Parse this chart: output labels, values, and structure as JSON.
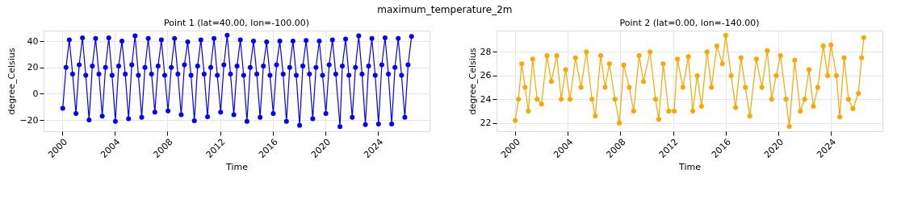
{
  "chart_data": [
    {
      "type": "line",
      "title": "Point 1 (lat=40.00, lon=-100.00)",
      "xlabel": "Time",
      "ylabel": "degree_Celsius",
      "annotations": [
        "maximum_temperature_2m"
      ],
      "grid": true,
      "marker": "circle",
      "line_style": "solid",
      "xlim": [
        "1998-08",
        "2027-12"
      ],
      "xticks": [
        "2000",
        "2004",
        "2008",
        "2012",
        "2016",
        "2020",
        "2024"
      ],
      "ylim": [
        -28.5,
        48
      ],
      "yticks": [
        -20,
        0,
        20,
        40
      ],
      "series": [
        {
          "color": "#0000ff",
          "x": [
            "2000-01-15",
            "2000-04-15",
            "2000-07-15",
            "2000-10-15",
            "2001-01-15",
            "2001-04-15",
            "2001-07-15",
            "2001-10-15",
            "2002-01-15",
            "2002-04-15",
            "2002-07-15",
            "2002-10-15",
            "2003-01-15",
            "2003-04-15",
            "2003-07-15",
            "2003-10-15",
            "2004-01-15",
            "2004-04-15",
            "2004-07-15",
            "2004-10-15",
            "2005-01-15",
            "2005-04-15",
            "2005-07-15",
            "2005-10-15",
            "2006-01-15",
            "2006-04-15",
            "2006-07-15",
            "2006-10-15",
            "2007-01-15",
            "2007-04-15",
            "2007-07-15",
            "2007-10-15",
            "2008-01-15",
            "2008-04-15",
            "2008-07-15",
            "2008-10-15",
            "2009-01-15",
            "2009-04-15",
            "2009-07-15",
            "2009-10-15",
            "2010-01-15",
            "2010-04-15",
            "2010-07-15",
            "2010-10-15",
            "2011-01-15",
            "2011-04-15",
            "2011-07-15",
            "2011-10-15",
            "2012-01-15",
            "2012-04-15",
            "2012-07-15",
            "2012-10-15",
            "2013-01-15",
            "2013-04-15",
            "2013-07-15",
            "2013-10-15",
            "2014-01-15",
            "2014-04-15",
            "2014-07-15",
            "2014-10-15",
            "2015-01-15",
            "2015-04-15",
            "2015-07-15",
            "2015-10-15",
            "2016-01-15",
            "2016-04-15",
            "2016-07-15",
            "2016-10-15",
            "2017-01-15",
            "2017-04-15",
            "2017-07-15",
            "2017-10-15",
            "2018-01-15",
            "2018-04-15",
            "2018-07-15",
            "2018-10-15",
            "2019-01-15",
            "2019-04-15",
            "2019-07-15",
            "2019-10-15",
            "2020-01-15",
            "2020-04-15",
            "2020-07-15",
            "2020-10-15",
            "2021-02-10",
            "2021-04-15",
            "2021-07-15",
            "2021-10-15",
            "2022-01-15",
            "2022-04-15",
            "2022-07-15",
            "2022-10-15",
            "2023-01-15",
            "2023-04-15",
            "2023-07-15",
            "2023-10-15",
            "2024-01-15",
            "2024-04-15",
            "2024-07-15",
            "2024-10-15",
            "2025-01-15",
            "2025-04-15",
            "2025-07-15",
            "2025-10-15",
            "2026-01-15",
            "2026-04-15",
            "2026-07-20"
          ],
          "values": [
            -11,
            20,
            41,
            15,
            -15,
            22,
            42.5,
            14,
            -20,
            21,
            42,
            15,
            -17,
            20,
            42.5,
            14,
            -21,
            21,
            40,
            15,
            -19,
            22,
            44,
            14,
            -18,
            20,
            42,
            15,
            -14,
            21,
            41,
            14,
            -13,
            20,
            42,
            15,
            -16,
            22,
            39.5,
            14,
            -20.5,
            21,
            41,
            15,
            -17.5,
            20,
            42,
            14,
            -14,
            22,
            44.5,
            15,
            -16,
            21,
            41,
            14,
            -21,
            20,
            40,
            15,
            -18,
            21,
            39.5,
            14,
            -15,
            22,
            40,
            15,
            -21,
            20,
            40,
            14,
            -24,
            21,
            40.5,
            15,
            -19,
            20,
            40,
            14,
            -15,
            22,
            41,
            15,
            -25,
            21,
            41.5,
            14,
            -18,
            20,
            44,
            15,
            -23.5,
            21,
            42,
            14,
            -23,
            22,
            42.5,
            15,
            -23,
            20,
            42,
            14,
            -18,
            22,
            43.5
          ]
        }
      ]
    },
    {
      "type": "line",
      "title": "Point 2 (lat=0.00, lon=-140.00)",
      "xlabel": "Time",
      "ylabel": "degree_Celsius",
      "grid": true,
      "marker": "circle",
      "line_style": "solid",
      "xlim": [
        "1998-08",
        "2027-12"
      ],
      "xticks": [
        "2000",
        "2004",
        "2008",
        "2012",
        "2016",
        "2020",
        "2024"
      ],
      "ylim": [
        21.3,
        29.8
      ],
      "yticks": [
        22,
        24,
        26,
        28
      ],
      "series": [
        {
          "color": "#ffa500",
          "x": [
            "2000-01",
            "2000-04",
            "2000-07",
            "2000-10",
            "2001-01",
            "2001-05",
            "2001-09",
            "2002-01",
            "2002-06",
            "2002-10",
            "2003-03",
            "2003-07",
            "2003-11",
            "2004-03",
            "2004-08",
            "2005-01",
            "2005-06",
            "2005-11",
            "2006-02",
            "2006-07",
            "2006-11",
            "2007-03",
            "2007-08",
            "2007-12",
            "2008-04",
            "2008-09",
            "2009-01",
            "2009-06",
            "2009-10",
            "2010-04",
            "2010-09",
            "2010-12",
            "2011-04",
            "2011-09",
            "2012-02",
            "2012-05",
            "2012-10",
            "2013-03",
            "2013-07",
            "2013-11",
            "2014-03",
            "2014-08",
            "2014-12",
            "2015-05",
            "2015-10",
            "2016-01",
            "2016-06",
            "2016-10",
            "2017-03",
            "2017-07",
            "2017-11",
            "2018-05",
            "2018-10",
            "2019-03",
            "2019-07",
            "2019-11",
            "2020-03",
            "2020-08",
            "2020-11",
            "2021-04",
            "2021-09",
            "2022-01",
            "2022-05",
            "2022-09",
            "2023-01",
            "2023-06",
            "2023-10",
            "2024-01",
            "2024-06",
            "2024-09",
            "2025-01",
            "2025-05",
            "2025-09",
            "2026-02",
            "2026-05",
            "2026-07"
          ],
          "values": [
            22.2,
            24,
            27,
            25,
            23,
            27.4,
            24,
            23.6,
            27.7,
            25.5,
            27.7,
            24,
            26.5,
            24,
            27.5,
            25,
            28,
            24,
            22.6,
            27.7,
            25,
            27,
            24,
            22,
            26.9,
            25,
            23,
            27.7,
            25.5,
            28,
            24,
            22.3,
            27,
            23,
            23,
            27.4,
            25,
            27.6,
            23,
            26,
            23.4,
            28,
            25,
            28.5,
            27,
            29.4,
            26,
            23.3,
            27.5,
            25,
            22.6,
            27.4,
            25,
            28.1,
            24,
            26,
            27.7,
            24,
            21.7,
            27.3,
            23,
            24,
            26.5,
            23.4,
            25,
            28.5,
            26,
            28.6,
            26,
            22.5,
            27.5,
            24,
            23.2,
            24.5,
            27.5,
            29.2
          ]
        }
      ]
    }
  ]
}
